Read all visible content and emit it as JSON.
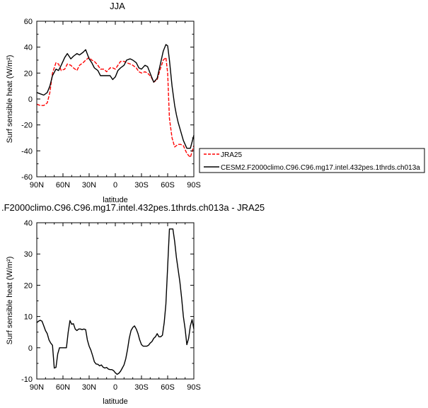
{
  "chart_data": [
    {
      "type": "line",
      "title": "JJA",
      "xlabel": "latitude",
      "ylabel": "Surf sensible heat (W/m²)",
      "xlim": [
        -90,
        90
      ],
      "ylim": [
        -60,
        60
      ],
      "x_ticks": [
        -90,
        -60,
        -30,
        0,
        30,
        60,
        90
      ],
      "x_tick_labels": [
        "90N",
        "60N",
        "30N",
        "0",
        "30S",
        "60S",
        "90S"
      ],
      "y_ticks": [
        -60,
        -40,
        -20,
        0,
        20,
        40,
        60
      ],
      "y_tick_labels": [
        "-60",
        "-40",
        "-20",
        "0",
        "20",
        "40",
        "60"
      ],
      "legend": {
        "placement": "right"
      },
      "series": [
        {
          "name": "JRA25",
          "color": "#ff0000",
          "dash": "dashed",
          "x": [
            -90,
            -86,
            -82,
            -78,
            -75,
            -72,
            -68,
            -65,
            -62,
            -58,
            -55,
            -51,
            -48,
            -44,
            -41,
            -37,
            -34,
            -30,
            -27,
            -24,
            -20,
            -17,
            -13,
            -10,
            -6,
            -3,
            0,
            3,
            6,
            10,
            13,
            17,
            20,
            24,
            27,
            30,
            34,
            37,
            41,
            44,
            48,
            51,
            55,
            58,
            60,
            62,
            65,
            68,
            70,
            72,
            75,
            78,
            82,
            86,
            90
          ],
          "y": [
            -4,
            -5,
            -5,
            -3,
            5,
            20,
            28,
            27,
            22,
            23,
            27,
            26,
            24,
            22,
            26,
            28,
            30,
            32,
            30,
            29,
            26,
            23,
            23,
            21,
            24,
            24,
            23,
            26,
            29,
            29,
            28,
            27,
            26,
            24,
            21,
            20,
            21,
            20,
            17,
            13,
            15,
            22,
            30,
            32,
            20,
            -15,
            -30,
            -37,
            -36,
            -35,
            -35,
            -36,
            -42,
            -45,
            -36
          ]
        },
        {
          "name": "CESM2.F2000climo.C96.C96.mg17.intel.432pes.1thrds.ch013a",
          "color": "#000000",
          "dash": "solid",
          "x": [
            -90,
            -86,
            -82,
            -78,
            -75,
            -72,
            -68,
            -65,
            -62,
            -58,
            -55,
            -51,
            -48,
            -44,
            -41,
            -37,
            -34,
            -30,
            -27,
            -24,
            -20,
            -17,
            -13,
            -10,
            -6,
            -3,
            0,
            3,
            6,
            10,
            13,
            17,
            20,
            24,
            27,
            30,
            34,
            37,
            41,
            44,
            48,
            51,
            55,
            58,
            60,
            62,
            65,
            68,
            70,
            72,
            75,
            78,
            82,
            86,
            90
          ],
          "y": [
            5,
            4,
            3,
            5,
            10,
            18,
            23,
            22,
            26,
            32,
            35,
            31,
            33,
            35,
            34,
            36,
            38,
            31,
            28,
            24,
            22,
            18,
            18,
            18,
            18,
            15,
            17,
            22,
            24,
            26,
            30,
            31,
            30,
            28,
            24,
            23,
            26,
            25,
            18,
            13,
            16,
            25,
            37,
            42,
            41,
            30,
            10,
            -5,
            -12,
            -18,
            -25,
            -32,
            -38,
            -38,
            -28
          ]
        }
      ]
    },
    {
      "type": "line",
      "title": ".F2000climo.C96.C96.mg17.intel.432pes.1thrds.ch013a - JRA25",
      "xlabel": "latitude",
      "ylabel": "Surf sensible heat (W/m²)",
      "xlim": [
        -90,
        90
      ],
      "ylim": [
        -10,
        40
      ],
      "x_ticks": [
        -90,
        -60,
        -30,
        0,
        30,
        60,
        90
      ],
      "x_tick_labels": [
        "90N",
        "60N",
        "30N",
        "0",
        "30S",
        "60S",
        "90S"
      ],
      "y_ticks": [
        -10,
        0,
        10,
        20,
        30,
        40
      ],
      "y_tick_labels": [
        "-10",
        "0",
        "10",
        "20",
        "30",
        "40"
      ],
      "series": [
        {
          "color": "#000000",
          "dash": "solid",
          "x": [
            -90,
            -88,
            -86,
            -84,
            -82,
            -80,
            -78,
            -76,
            -74,
            -72,
            -70,
            -68,
            -66,
            -64,
            -60,
            -58,
            -56,
            -54,
            -52,
            -50,
            -48,
            -46,
            -44,
            -42,
            -40,
            -38,
            -36,
            -34,
            -32,
            -30,
            -28,
            -26,
            -24,
            -22,
            -20,
            -18,
            -16,
            -14,
            -12,
            -10,
            -8,
            -6,
            -4,
            -2,
            0,
            2,
            4,
            6,
            8,
            10,
            12,
            14,
            16,
            18,
            20,
            22,
            24,
            26,
            28,
            30,
            32,
            34,
            36,
            38,
            40,
            42,
            44,
            46,
            48,
            50,
            52,
            54,
            56,
            58,
            60,
            62,
            64,
            66,
            68,
            70,
            72,
            74,
            76,
            78,
            80,
            82,
            84,
            86,
            88,
            90
          ],
          "y": [
            8,
            8.5,
            8.8,
            8.5,
            7,
            5.5,
            4.5,
            2.5,
            1.5,
            0.8,
            -6.5,
            -6.3,
            -2,
            0,
            0,
            0,
            0,
            5,
            8.7,
            7.5,
            7.7,
            6,
            5.5,
            6,
            6,
            5.8,
            6,
            5.8,
            2.5,
            0.5,
            -0.8,
            -2.5,
            -4.5,
            -5.2,
            -5.3,
            -5.8,
            -5.5,
            -6.2,
            -6.5,
            -6.3,
            -6.8,
            -7,
            -7,
            -7.3,
            -8,
            -8.5,
            -8.2,
            -7.5,
            -6.5,
            -5.5,
            -3.5,
            -0.5,
            3,
            5.5,
            6.5,
            7,
            6,
            4.5,
            2.5,
            1,
            0.5,
            0.5,
            0.5,
            0.8,
            1.5,
            2,
            3,
            3.5,
            4.5,
            3.5,
            3.5,
            4,
            8,
            14,
            26,
            38,
            38,
            38,
            34,
            29,
            25,
            21,
            16,
            10,
            6,
            1,
            3,
            7,
            9,
            6
          ]
        }
      ]
    }
  ]
}
